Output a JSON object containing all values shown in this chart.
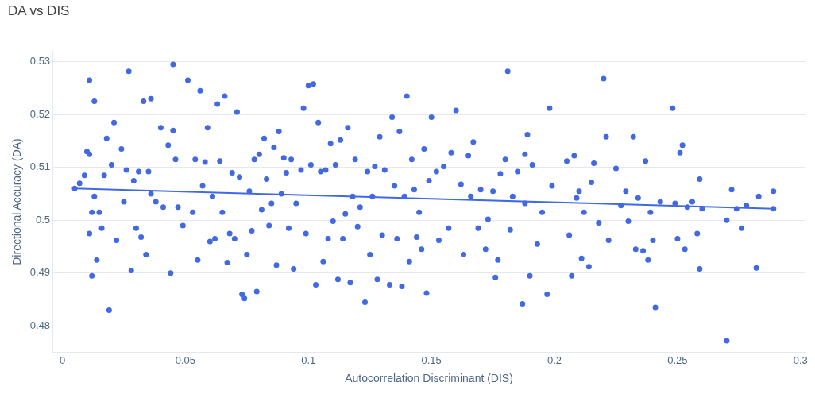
{
  "chart_data": {
    "type": "scatter",
    "title": "DA vs DIS",
    "xlabel": "Autocorrelation Discriminant (DIS)",
    "ylabel": "Directional Accuracy (DA)",
    "xlim": [
      -0.004,
      0.302
    ],
    "xticks": [
      0,
      0.05,
      0.1,
      0.15,
      0.2,
      0.25,
      0.3
    ],
    "ylim": [
      0.475,
      0.532
    ],
    "yticks": [
      0.48,
      0.49,
      0.5,
      0.51,
      0.52,
      0.53
    ],
    "grid": "y",
    "marker": "circle",
    "series": [
      {
        "type": "scatter",
        "color": "#4169e1",
        "x": [
          0.005,
          0.007,
          0.009,
          0.01,
          0.011,
          0.011,
          0.011,
          0.012,
          0.012,
          0.013,
          0.013,
          0.014,
          0.015,
          0.016,
          0.017,
          0.018,
          0.019,
          0.02,
          0.021,
          0.022,
          0.024,
          0.025,
          0.026,
          0.027,
          0.028,
          0.029,
          0.03,
          0.031,
          0.032,
          0.033,
          0.034,
          0.035,
          0.036,
          0.036,
          0.038,
          0.04,
          0.041,
          0.043,
          0.044,
          0.045,
          0.045,
          0.046,
          0.047,
          0.049,
          0.051,
          0.053,
          0.054,
          0.055,
          0.056,
          0.057,
          0.058,
          0.059,
          0.06,
          0.061,
          0.062,
          0.063,
          0.064,
          0.065,
          0.066,
          0.067,
          0.068,
          0.069,
          0.07,
          0.071,
          0.072,
          0.073,
          0.074,
          0.075,
          0.076,
          0.077,
          0.078,
          0.079,
          0.08,
          0.081,
          0.082,
          0.083,
          0.084,
          0.085,
          0.086,
          0.087,
          0.088,
          0.089,
          0.09,
          0.091,
          0.092,
          0.093,
          0.094,
          0.095,
          0.097,
          0.098,
          0.099,
          0.1,
          0.101,
          0.102,
          0.103,
          0.104,
          0.105,
          0.106,
          0.107,
          0.108,
          0.109,
          0.11,
          0.111,
          0.112,
          0.113,
          0.114,
          0.115,
          0.116,
          0.117,
          0.118,
          0.119,
          0.12,
          0.121,
          0.123,
          0.124,
          0.125,
          0.126,
          0.127,
          0.128,
          0.129,
          0.13,
          0.131,
          0.133,
          0.134,
          0.135,
          0.136,
          0.137,
          0.138,
          0.139,
          0.14,
          0.141,
          0.142,
          0.143,
          0.144,
          0.145,
          0.146,
          0.147,
          0.148,
          0.149,
          0.15,
          0.152,
          0.153,
          0.155,
          0.157,
          0.158,
          0.16,
          0.162,
          0.163,
          0.165,
          0.166,
          0.167,
          0.169,
          0.17,
          0.172,
          0.173,
          0.175,
          0.176,
          0.177,
          0.178,
          0.18,
          0.181,
          0.182,
          0.183,
          0.185,
          0.187,
          0.188,
          0.188,
          0.189,
          0.19,
          0.191,
          0.193,
          0.195,
          0.197,
          0.198,
          0.199,
          0.205,
          0.206,
          0.207,
          0.208,
          0.209,
          0.21,
          0.211,
          0.212,
          0.214,
          0.215,
          0.216,
          0.218,
          0.22,
          0.221,
          0.222,
          0.225,
          0.227,
          0.229,
          0.23,
          0.232,
          0.233,
          0.234,
          0.236,
          0.237,
          0.238,
          0.239,
          0.24,
          0.241,
          0.243,
          0.248,
          0.249,
          0.25,
          0.251,
          0.252,
          0.253,
          0.254,
          0.256,
          0.258,
          0.259,
          0.259,
          0.26,
          0.27,
          0.27,
          0.272,
          0.274,
          0.276,
          0.278,
          0.282,
          0.283,
          0.289,
          0.289
        ],
        "values": [
          0.506,
          0.507,
          0.5085,
          0.513,
          0.5125,
          0.4975,
          0.5265,
          0.5015,
          0.4895,
          0.5225,
          0.5045,
          0.4925,
          0.5015,
          0.4985,
          0.5085,
          0.5155,
          0.483,
          0.5105,
          0.5185,
          0.4962,
          0.5135,
          0.5035,
          0.5095,
          0.5282,
          0.4905,
          0.5075,
          0.4985,
          0.5092,
          0.4968,
          0.5225,
          0.4935,
          0.5092,
          0.523,
          0.505,
          0.5035,
          0.5175,
          0.5025,
          0.5142,
          0.49,
          0.5295,
          0.517,
          0.5115,
          0.5025,
          0.499,
          0.5265,
          0.5015,
          0.5115,
          0.4925,
          0.5245,
          0.5065,
          0.511,
          0.5175,
          0.496,
          0.5045,
          0.4965,
          0.522,
          0.5112,
          0.5015,
          0.5235,
          0.492,
          0.4975,
          0.509,
          0.4965,
          0.5205,
          0.5082,
          0.486,
          0.4852,
          0.4935,
          0.5055,
          0.498,
          0.5115,
          0.4865,
          0.5125,
          0.502,
          0.5155,
          0.5078,
          0.499,
          0.5032,
          0.5138,
          0.4915,
          0.5168,
          0.505,
          0.5118,
          0.509,
          0.4985,
          0.5115,
          0.4908,
          0.5032,
          0.5095,
          0.5212,
          0.4975,
          0.5255,
          0.5105,
          0.5258,
          0.4878,
          0.5185,
          0.5092,
          0.4922,
          0.5095,
          0.4965,
          0.5145,
          0.4998,
          0.5105,
          0.4888,
          0.5152,
          0.4965,
          0.5012,
          0.5175,
          0.4882,
          0.5045,
          0.5115,
          0.4988,
          0.5025,
          0.4845,
          0.5092,
          0.4935,
          0.5045,
          0.5102,
          0.4888,
          0.5158,
          0.4972,
          0.5095,
          0.4878,
          0.5195,
          0.5065,
          0.4965,
          0.5168,
          0.4875,
          0.5045,
          0.5235,
          0.4922,
          0.5115,
          0.5058,
          0.4968,
          0.5015,
          0.4945,
          0.5135,
          0.4862,
          0.5075,
          0.5195,
          0.5092,
          0.4962,
          0.5102,
          0.4985,
          0.5128,
          0.5208,
          0.5068,
          0.4935,
          0.5122,
          0.5045,
          0.5148,
          0.4985,
          0.5058,
          0.4945,
          0.5002,
          0.5055,
          0.4892,
          0.4925,
          0.5088,
          0.5115,
          0.5282,
          0.4982,
          0.5045,
          0.5092,
          0.4842,
          0.5125,
          0.5032,
          0.5162,
          0.4895,
          0.5105,
          0.4955,
          0.5015,
          0.486,
          0.5212,
          0.5065,
          0.5112,
          0.4972,
          0.4895,
          0.5122,
          0.5042,
          0.5055,
          0.4928,
          0.5015,
          0.4912,
          0.5072,
          0.5108,
          0.4995,
          0.5268,
          0.5158,
          0.4962,
          0.5098,
          0.5028,
          0.5055,
          0.4998,
          0.5158,
          0.4945,
          0.5042,
          0.4942,
          0.5112,
          0.4925,
          0.5015,
          0.4962,
          0.4835,
          0.5035,
          0.5212,
          0.5032,
          0.4965,
          0.5128,
          0.5142,
          0.4945,
          0.5025,
          0.5035,
          0.4975,
          0.5078,
          0.4908,
          0.5022,
          0.4772,
          0.5,
          0.5058,
          0.5022,
          0.4985,
          0.5028,
          0.491,
          0.5045,
          0.5055,
          0.5022
        ]
      },
      {
        "type": "line",
        "marker": "none",
        "color": "#4169e1",
        "x": [
          0.005,
          0.289
        ],
        "values": [
          0.506,
          0.5022
        ]
      }
    ]
  }
}
